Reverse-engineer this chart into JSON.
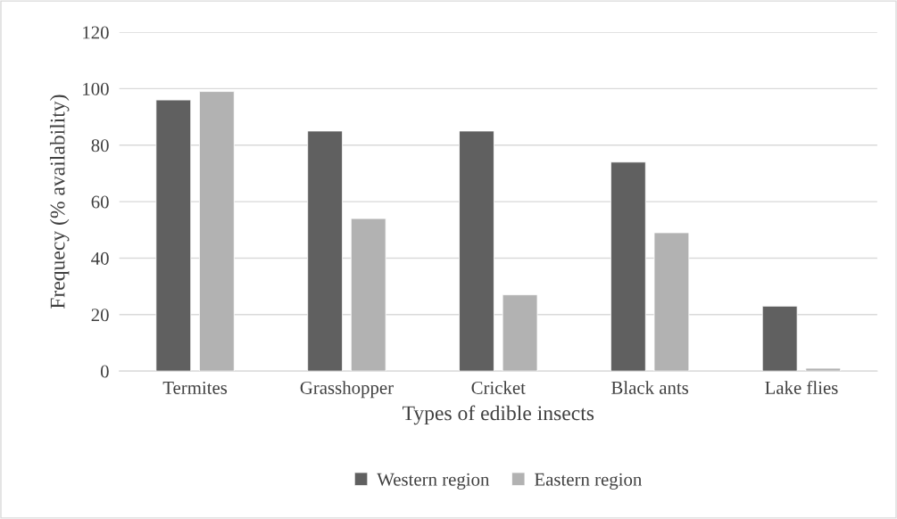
{
  "chart_data": {
    "type": "bar",
    "categories": [
      "Termites",
      "Grasshopper",
      "Cricket",
      "Black ants",
      "Lake flies"
    ],
    "series": [
      {
        "name": "Western region",
        "color": "#606060",
        "values": [
          96,
          85,
          85,
          74,
          23
        ]
      },
      {
        "name": "Eastern region",
        "color": "#b2b2b2",
        "values": [
          99,
          54,
          27,
          49,
          1
        ]
      }
    ],
    "xlabel": "Types of edible insects",
    "ylabel": "Frequecy (% availability)",
    "ylim": [
      0,
      120
    ],
    "yticks": [
      0,
      20,
      40,
      60,
      80,
      100,
      120
    ],
    "grid": "y",
    "legend": "bottom"
  }
}
